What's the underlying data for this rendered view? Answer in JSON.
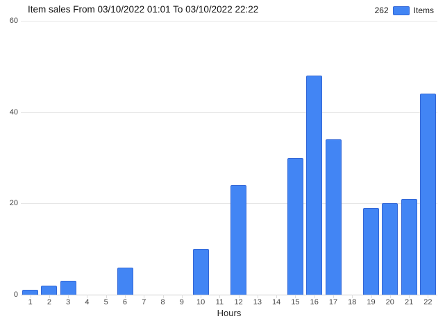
{
  "chart_data": {
    "type": "bar",
    "title": "Item sales From 03/10/2022 01:01 To 03/10/2022 22:22",
    "legend": {
      "count": "262",
      "label": "Items",
      "position": "top-right"
    },
    "xlabel": "Hours",
    "ylabel": "",
    "categories": [
      1,
      2,
      3,
      4,
      5,
      6,
      7,
      8,
      9,
      10,
      11,
      12,
      13,
      14,
      15,
      16,
      17,
      18,
      19,
      20,
      21,
      22
    ],
    "values": [
      1,
      2,
      3,
      0,
      0,
      6,
      0,
      0,
      0,
      10,
      0,
      24,
      0,
      0,
      30,
      48,
      34,
      0,
      19,
      20,
      21,
      44
    ],
    "total": 262,
    "ylim": [
      0,
      60
    ],
    "yticks": [
      0,
      20,
      40,
      60
    ],
    "grid": true,
    "colors": {
      "bar_fill": "#4285f4",
      "bar_stroke": "#3367d6",
      "gridline": "#e6e6e6",
      "axis_line": "#cccccc",
      "tick": "#dddddd"
    }
  }
}
